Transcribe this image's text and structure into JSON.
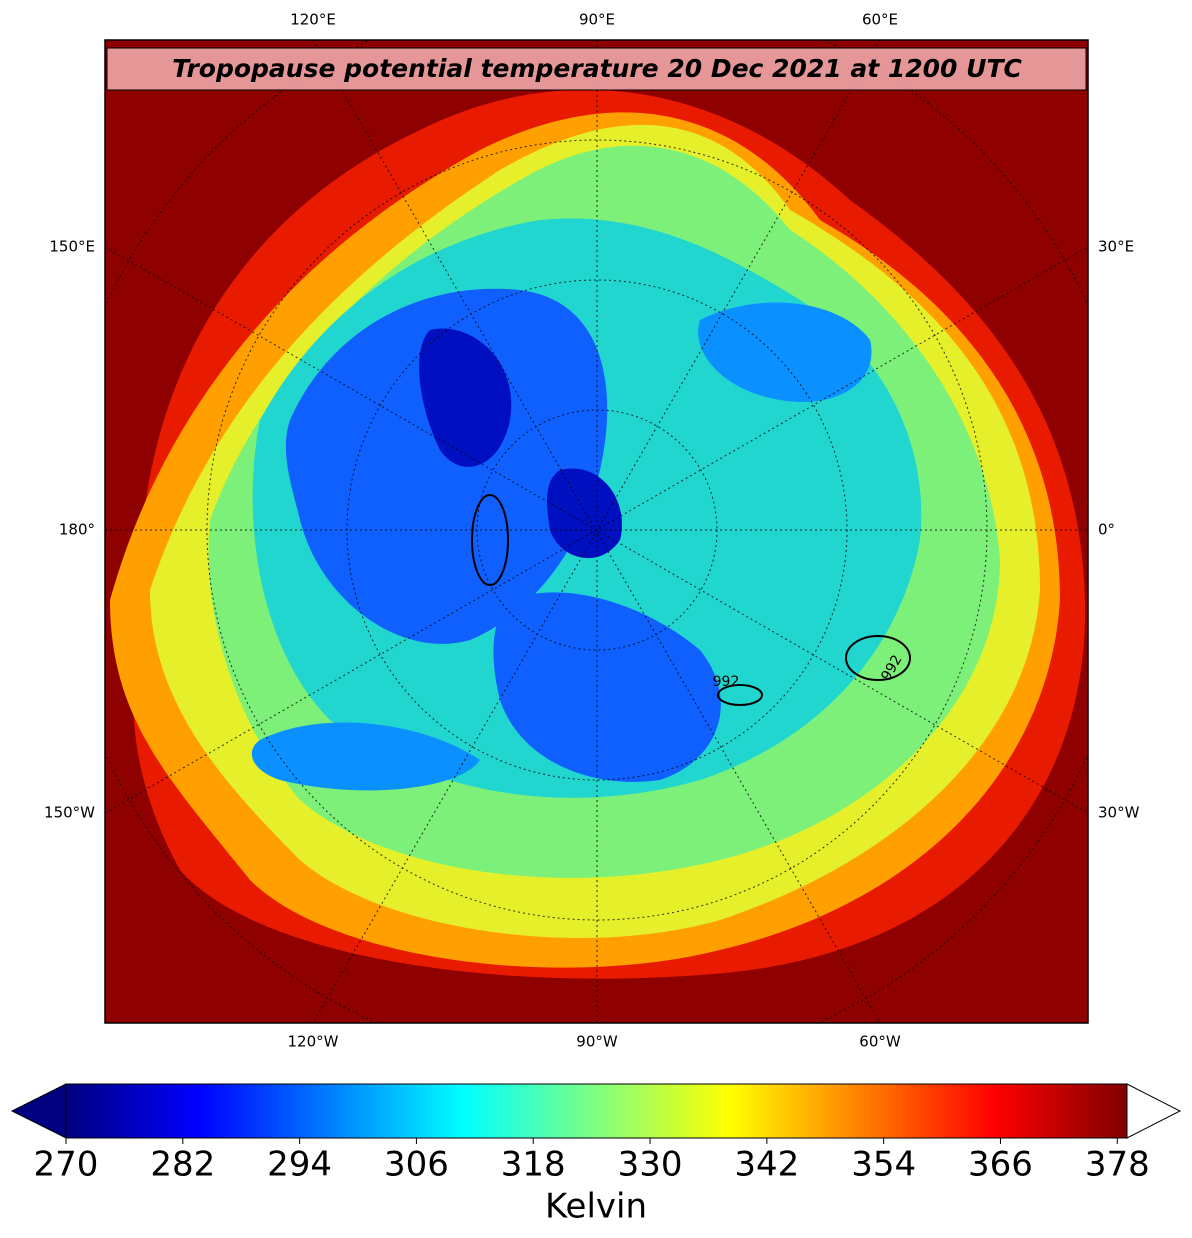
{
  "map": {
    "title": "Tropopause potential temperature 20 Dec 2021 at 1200 UTC",
    "labels": {
      "top": [
        "120°E",
        "90°E",
        "60°E"
      ],
      "bottom": [
        "120°W",
        "90°W",
        "60°W"
      ],
      "left": [
        "150°E",
        "180°",
        "150°W"
      ],
      "right": [
        "30°E",
        "0°",
        "30°W"
      ]
    },
    "contour_labels": [
      "992",
      "992"
    ]
  },
  "colorbar": {
    "colormap": "jet",
    "range": [
      270,
      379
    ],
    "ticks": [
      270,
      282,
      294,
      306,
      318,
      330,
      342,
      354,
      366,
      378
    ],
    "label": "Kelvin",
    "extend": "both"
  }
}
